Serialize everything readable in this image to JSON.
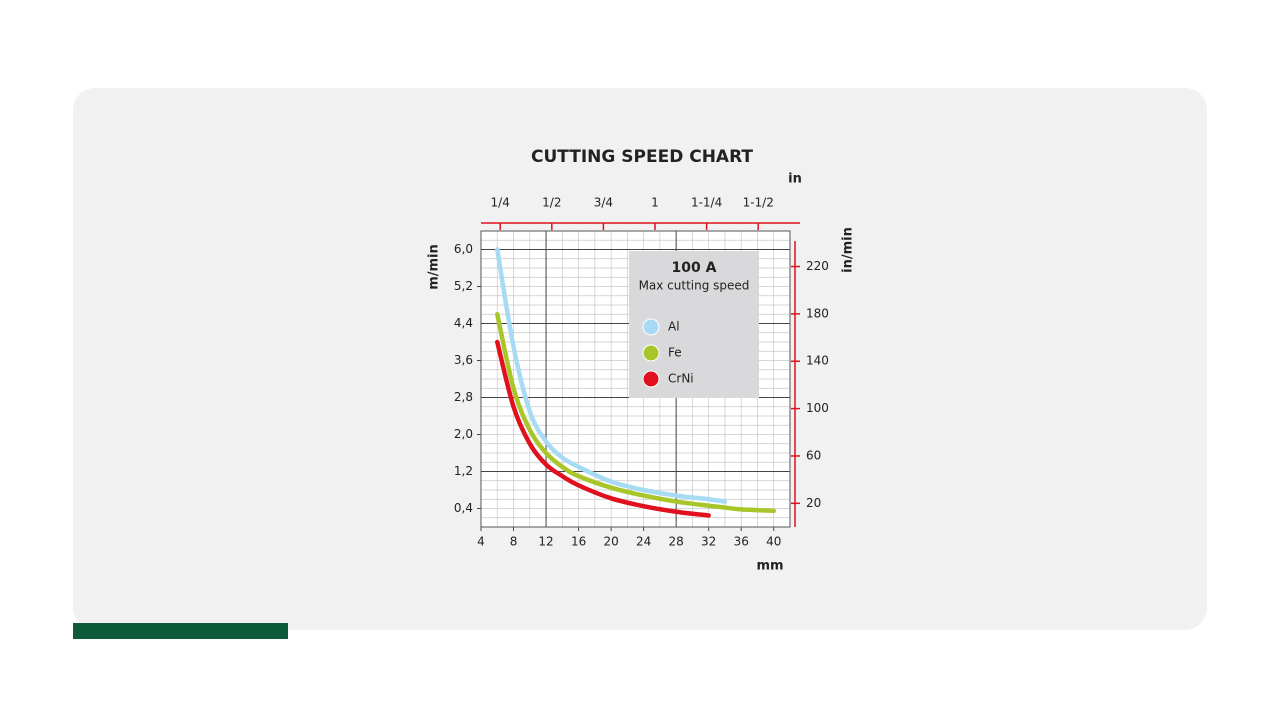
{
  "chart_data": {
    "type": "line",
    "title": "CUTTING SPEED CHART",
    "y_label": "m/min",
    "y2_label": "in/min",
    "x_label": "mm",
    "x2_label": "in",
    "legend_title": "100 A",
    "legend_subtitle": "Max cutting speed",
    "x": [
      6,
      8,
      10,
      12,
      14,
      16,
      20,
      24,
      28,
      32,
      34,
      36,
      40
    ],
    "series": [
      {
        "name": "Al",
        "color": "#a6dbf3",
        "values": [
          6.0,
          3.9,
          2.5,
          1.85,
          1.5,
          1.3,
          0.98,
          0.8,
          0.68,
          0.6,
          0.55,
          null,
          null
        ]
      },
      {
        "name": "Fe",
        "color": "#a8c62a",
        "values": [
          4.6,
          3.0,
          2.1,
          1.6,
          1.3,
          1.1,
          0.85,
          0.68,
          0.55,
          0.46,
          0.42,
          0.38,
          0.35
        ]
      },
      {
        "name": "CrNi",
        "color": "#e0101e",
        "values": [
          4.0,
          2.6,
          1.8,
          1.35,
          1.1,
          0.9,
          0.62,
          0.45,
          0.33,
          0.25,
          null,
          null,
          null
        ]
      }
    ],
    "xlim": [
      4,
      42
    ],
    "xticks": [
      4,
      8,
      12,
      16,
      20,
      24,
      28,
      32,
      36,
      40
    ],
    "ylim": [
      0,
      6.4
    ],
    "yticks": [
      {
        "value": 0.4,
        "label": "0,4"
      },
      {
        "value": 1.2,
        "label": "1,2"
      },
      {
        "value": 2.0,
        "label": "2,0"
      },
      {
        "value": 2.8,
        "label": "2,8"
      },
      {
        "value": 3.6,
        "label": "3,6"
      },
      {
        "value": 4.4,
        "label": "4,4"
      },
      {
        "value": 5.2,
        "label": "5,2"
      },
      {
        "value": 6.0,
        "label": "6,0"
      }
    ],
    "y2lim": [
      0,
      250
    ],
    "y2ticks": [
      20,
      60,
      100,
      140,
      180,
      220
    ],
    "x2lim": [
      0.157,
      1.654
    ],
    "x2ticks": [
      {
        "value": 0.25,
        "label": "1/4"
      },
      {
        "value": 0.5,
        "label": "1/2"
      },
      {
        "value": 0.75,
        "label": "3/4"
      },
      1,
      {
        "value": 1.25,
        "label": "1-1/4"
      },
      {
        "value": 1.5,
        "label": "1-1/2"
      }
    ],
    "grid": true
  }
}
